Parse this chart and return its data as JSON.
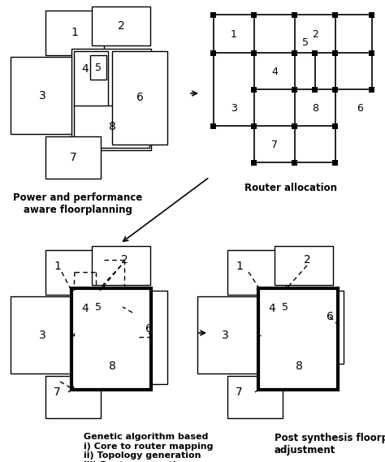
{
  "bg_color": "#ffffff",
  "panel_A_label": "Power and performance\naware floorplanning",
  "panel_B_label": "Router allocation",
  "panel_C_label": "Genetic algorithm based\ni) Core to router mapping\nii) Topology generation\niii) Route generation",
  "panel_D_label": "Post synthesis floorplan\nadjustment",
  "figsize": [
    4.74,
    5.69
  ],
  "dpi": 100
}
